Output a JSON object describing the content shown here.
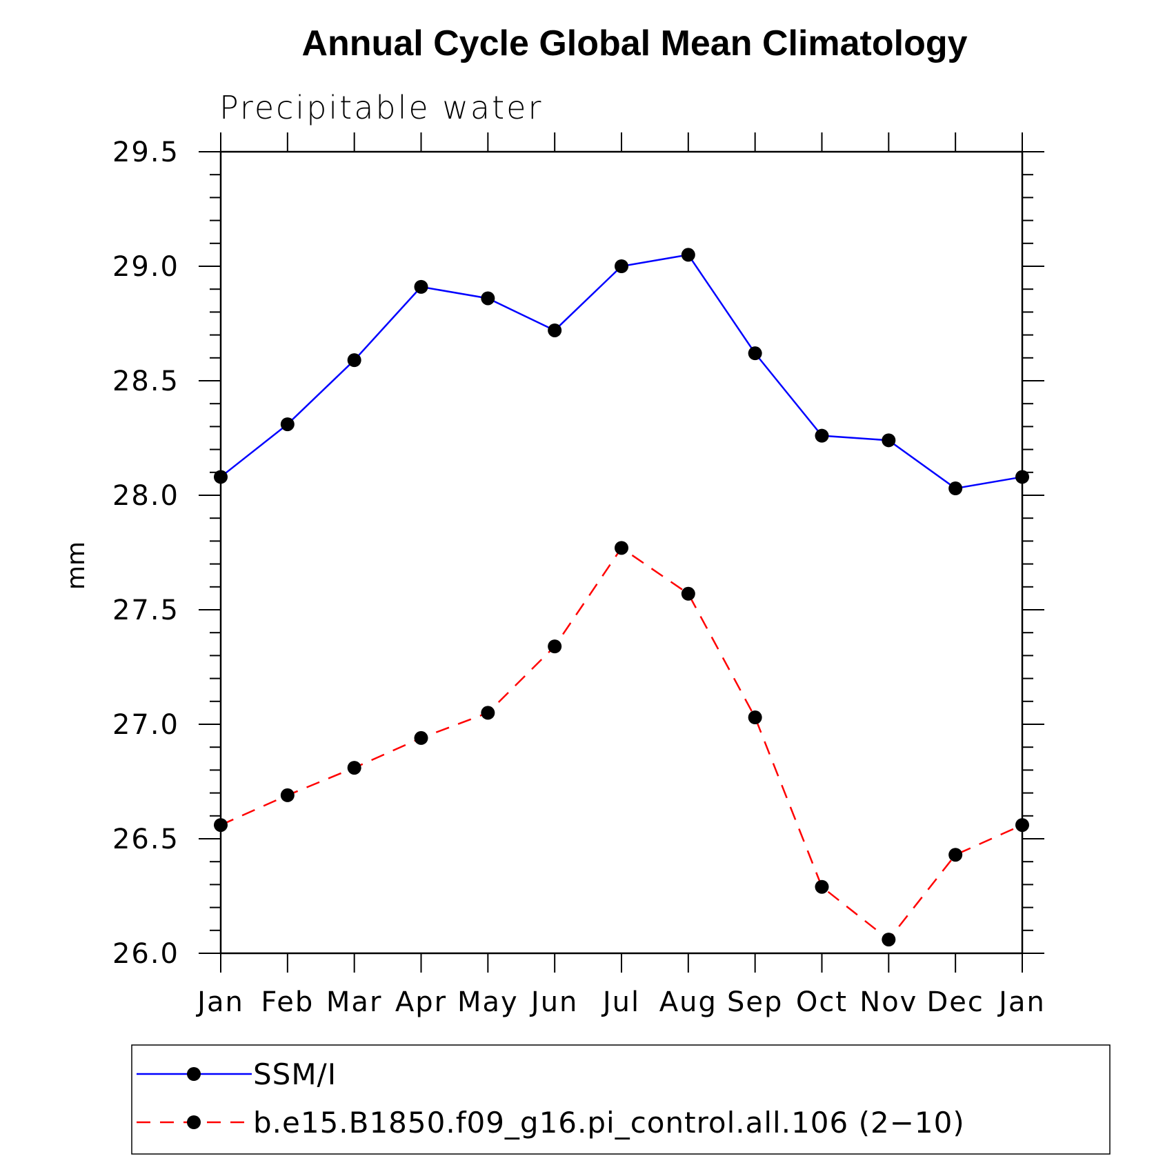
{
  "chart_data": {
    "type": "line",
    "title": "Annual Cycle Global Mean Climatology",
    "subtitle": "Precipitable water",
    "xlabel": "",
    "ylabel": "mm",
    "categories": [
      "Jan",
      "Feb",
      "Mar",
      "Apr",
      "May",
      "Jun",
      "Jul",
      "Aug",
      "Sep",
      "Oct",
      "Nov",
      "Dec",
      "Jan"
    ],
    "ylim": [
      26.0,
      29.5
    ],
    "yticks": [
      "26.0",
      "26.5",
      "27.0",
      "27.5",
      "28.0",
      "28.5",
      "29.0",
      "29.5"
    ],
    "grid": false,
    "legend_position": "bottom",
    "series": [
      {
        "name": "SSM/I",
        "color": "#0000ff",
        "line_style": "solid",
        "marker": "filled-circle",
        "values": [
          28.08,
          28.31,
          28.59,
          28.91,
          28.86,
          28.72,
          29.0,
          29.05,
          28.62,
          28.26,
          28.24,
          28.03,
          28.08
        ]
      },
      {
        "name": "b.e15.B1850.f09_g16.pi_control.all.106 (2−10)",
        "color": "#ff0000",
        "line_style": "dashed",
        "marker": "filled-circle",
        "values": [
          26.56,
          26.69,
          26.81,
          26.94,
          27.05,
          27.34,
          27.77,
          27.57,
          27.03,
          26.29,
          26.06,
          26.43,
          26.56
        ]
      }
    ]
  }
}
